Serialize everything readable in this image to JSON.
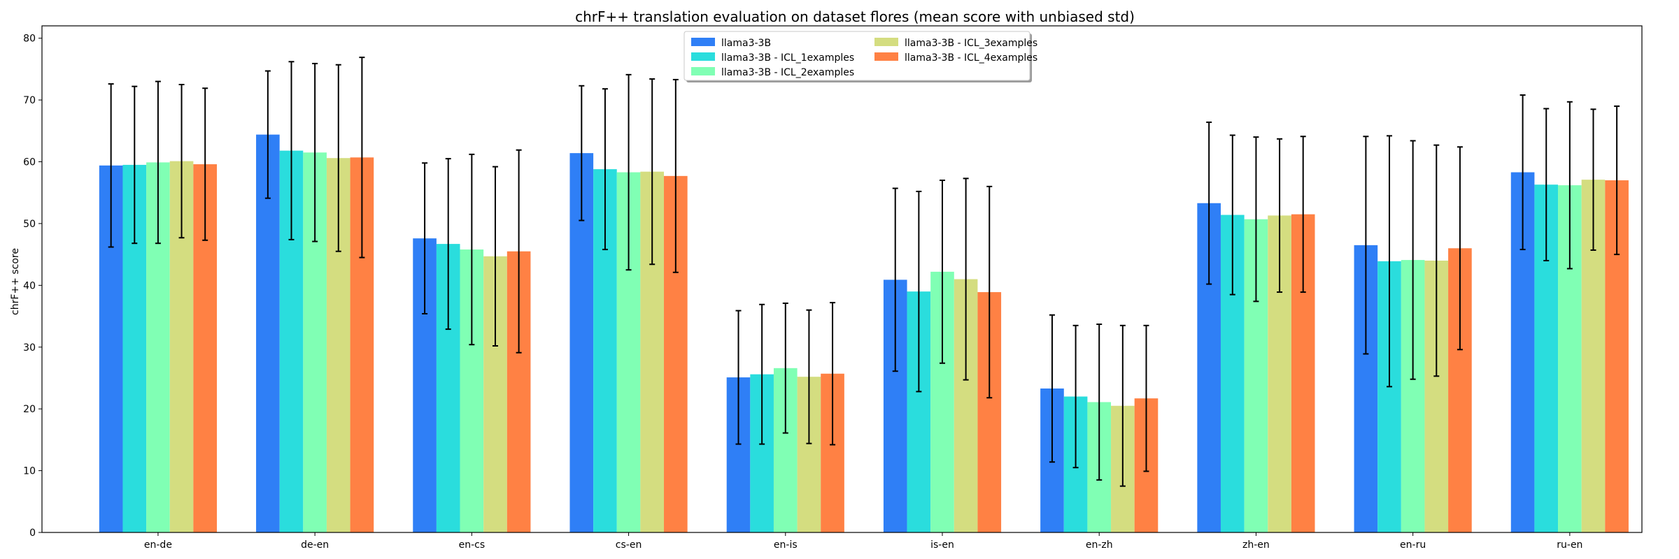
{
  "chart_data": {
    "type": "bar",
    "title": "chrF++ translation evaluation on dataset flores (mean score with unbiased std)",
    "xlabel": "",
    "ylabel": "chrF++ score",
    "ylim": [
      0,
      82
    ],
    "yticks": [
      0,
      10,
      20,
      30,
      40,
      50,
      60,
      70,
      80
    ],
    "grid": false,
    "legend_position": "top-center",
    "legend_columns": 2,
    "categories": [
      "en-de",
      "de-en",
      "en-cs",
      "cs-en",
      "en-is",
      "is-en",
      "en-zh",
      "zh-en",
      "en-ru",
      "ru-en"
    ],
    "series": [
      {
        "name": "llama3-3B",
        "color": "#2f7ff6",
        "values": [
          59.4,
          64.4,
          47.6,
          61.4,
          25.1,
          40.9,
          23.3,
          53.3,
          46.5,
          58.3
        ],
        "std": [
          13.2,
          10.3,
          12.2,
          10.9,
          10.8,
          14.8,
          11.9,
          13.1,
          17.6,
          12.5
        ]
      },
      {
        "name": "llama3-3B - ICL_1examples",
        "color": "#2adddd",
        "values": [
          59.5,
          61.8,
          46.7,
          58.8,
          25.6,
          39.0,
          22.0,
          51.4,
          43.9,
          56.3
        ],
        "std": [
          12.7,
          14.4,
          13.8,
          13.0,
          11.3,
          16.2,
          11.5,
          12.9,
          20.3,
          12.3
        ]
      },
      {
        "name": "llama3-3B - ICL_2examples",
        "color": "#80ffb4",
        "values": [
          59.9,
          61.5,
          45.8,
          58.3,
          26.6,
          42.2,
          21.1,
          50.7,
          44.1,
          56.2
        ],
        "std": [
          13.1,
          14.4,
          15.4,
          15.8,
          10.5,
          14.8,
          12.6,
          13.3,
          19.3,
          13.5
        ]
      },
      {
        "name": "llama3-3B - ICL_3examples",
        "color": "#d4dd80",
        "values": [
          60.1,
          60.6,
          44.7,
          58.4,
          25.2,
          41.0,
          20.5,
          51.3,
          44.0,
          57.1
        ],
        "std": [
          12.4,
          15.1,
          14.5,
          15.0,
          10.8,
          16.3,
          13.0,
          12.4,
          18.7,
          11.4
        ]
      },
      {
        "name": "llama3-3B - ICL_4examples",
        "color": "#ff8144",
        "values": [
          59.6,
          60.7,
          45.5,
          57.7,
          25.7,
          38.9,
          21.7,
          51.5,
          46.0,
          57.0
        ],
        "std": [
          12.3,
          16.2,
          16.4,
          15.6,
          11.5,
          17.1,
          11.8,
          12.6,
          16.4,
          12.0
        ]
      }
    ]
  }
}
